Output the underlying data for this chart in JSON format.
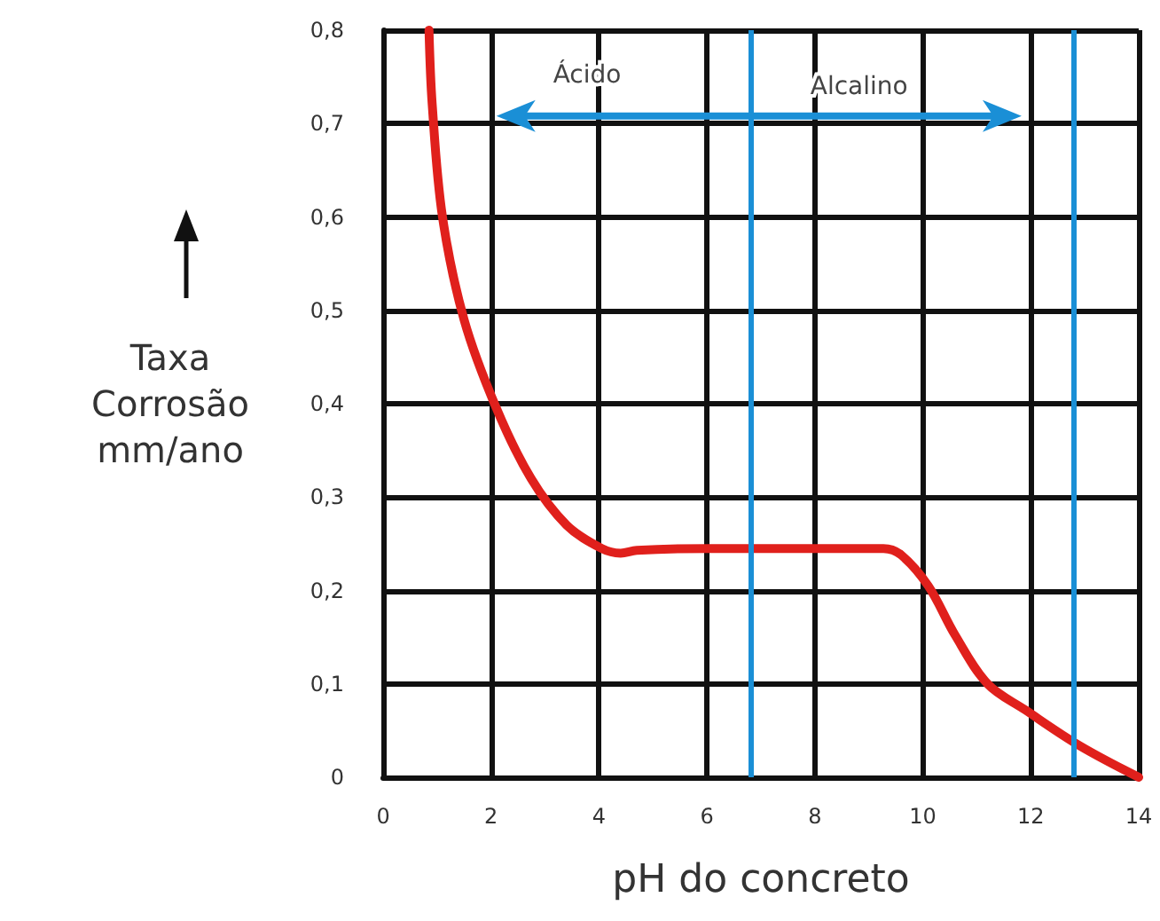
{
  "chart_data": {
    "type": "line",
    "xlabel": "pH do concreto",
    "ylabel": "Taxa\nCorrosão\nmm/ano",
    "annotations": [
      "Ácido",
      "Alcalino"
    ],
    "x": [
      0.85,
      0.91,
      1.1,
      1.5,
      2.1,
      2.74,
      3.4,
      4.05,
      4.4,
      4.7,
      6.0,
      9.27,
      9.6,
      10.1,
      10.6,
      11.2,
      11.9,
      12.9,
      14
    ],
    "series": [
      {
        "color": "#e0201c",
        "values": [
          0.8,
          0.72,
          0.6,
          0.49,
          0.395,
          0.32,
          0.27,
          0.245,
          0.24,
          0.243,
          0.245,
          0.245,
          0.238,
          0.205,
          0.152,
          0.1,
          0.072,
          0.034,
          0
        ]
      }
    ],
    "xlim": [
      0,
      14
    ],
    "xticks": [
      0,
      2,
      4,
      6,
      8,
      10,
      12,
      14
    ],
    "ylim": [
      0,
      0.8
    ],
    "yticks": [
      {
        "value": 0,
        "label": "0"
      },
      {
        "value": 0.1,
        "label": "0,1"
      },
      {
        "value": 0.2,
        "label": "0,2"
      },
      {
        "value": 0.3,
        "label": "0,3"
      },
      {
        "value": 0.4,
        "label": "0,4"
      },
      {
        "value": 0.5,
        "label": "0,5"
      },
      {
        "value": 0.6,
        "label": "0,6"
      },
      {
        "value": 0.7,
        "label": "0,7"
      },
      {
        "value": 0.8,
        "label": "0,8"
      }
    ],
    "ref_lines": [
      {
        "axis": "x",
        "value": 6.8,
        "color": "#1a8fd6"
      },
      {
        "axis": "x",
        "value": 12.8,
        "color": "#1a8fd6"
      }
    ],
    "grid": true,
    "marker": "none",
    "line_style": "solid"
  }
}
